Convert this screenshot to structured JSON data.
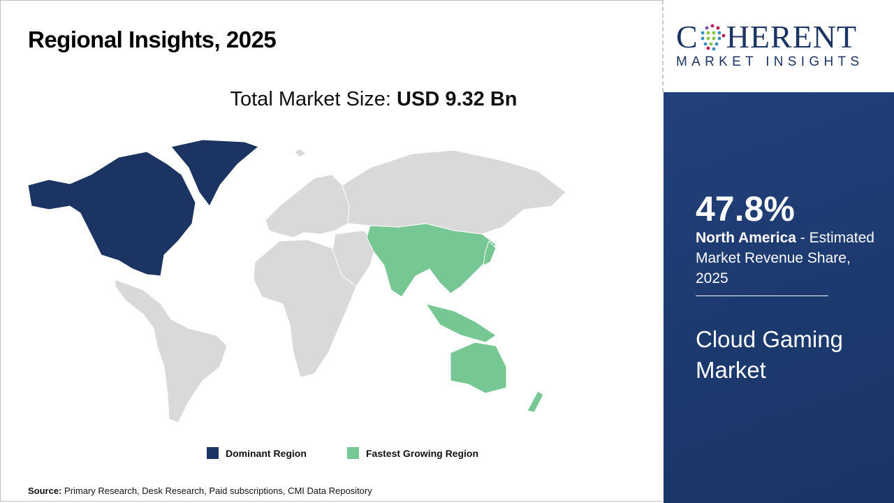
{
  "title": "Regional Insights, 2025",
  "total_market": {
    "label": "Total Market Size:",
    "value": "USD 9.32 Bn"
  },
  "map": {
    "dominant_region": "North America",
    "fastest_growing_region": "Asia Pacific",
    "colors": {
      "dominant": "#1b3462",
      "fastest": "#77c794",
      "other": "#d9d9d9"
    }
  },
  "legend": [
    {
      "label": "Dominant Region",
      "color": "#1b3462"
    },
    {
      "label": "Fastest Growing Region",
      "color": "#77c794"
    }
  ],
  "source": {
    "label": "Source:",
    "text": "Primary Research, Desk Research, Paid subscriptions, CMI Data Repository"
  },
  "logo": {
    "top": "COHERENT",
    "sub": "MARKET INSIGHTS"
  },
  "panel": {
    "share": "47.8%",
    "region": "North America",
    "description": "- Estimated Market Revenue Share, 2025",
    "market_name": "Cloud Gaming Market"
  }
}
